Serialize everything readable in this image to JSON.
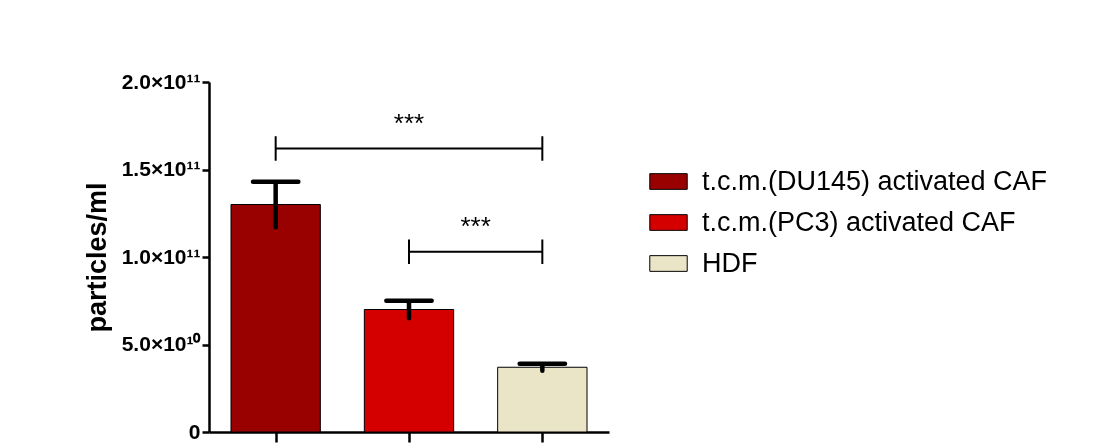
{
  "chart_data": {
    "type": "bar",
    "ylabel": "particles/ml",
    "categories": [
      null,
      null,
      null
    ],
    "series": [
      {
        "name": "t.c.m.(DU145) activated CAF",
        "color": "#990000",
        "values": [
          130000000000.0,
          null,
          null
        ],
        "errors": [
          13000000000.0,
          null,
          null
        ]
      },
      {
        "name": "t.c.m.(PC3) activated CAF",
        "color": "#d40000",
        "values": [
          null,
          70000000000.0,
          null
        ],
        "errors": [
          null,
          5000000000.0,
          null
        ]
      },
      {
        "name": "HDF",
        "color": "#ebe5c8",
        "values": [
          null,
          null,
          37000000000.0
        ],
        "errors": [
          null,
          null,
          2000000000.0
        ]
      }
    ],
    "ylim": [
      0,
      200000000000.0
    ],
    "yticks": [
      0,
      {
        "value": 50000000000.0,
        "label": "5.0×10¹⁰"
      },
      {
        "value": 100000000000.0,
        "label": "1.0×10¹¹"
      },
      {
        "value": 150000000000.0,
        "label": "1.5×10¹¹"
      },
      {
        "value": 200000000000.0,
        "label": "2.0×10¹¹"
      }
    ],
    "grid": false,
    "legend": "right",
    "annotations": [
      "***",
      "***"
    ]
  }
}
